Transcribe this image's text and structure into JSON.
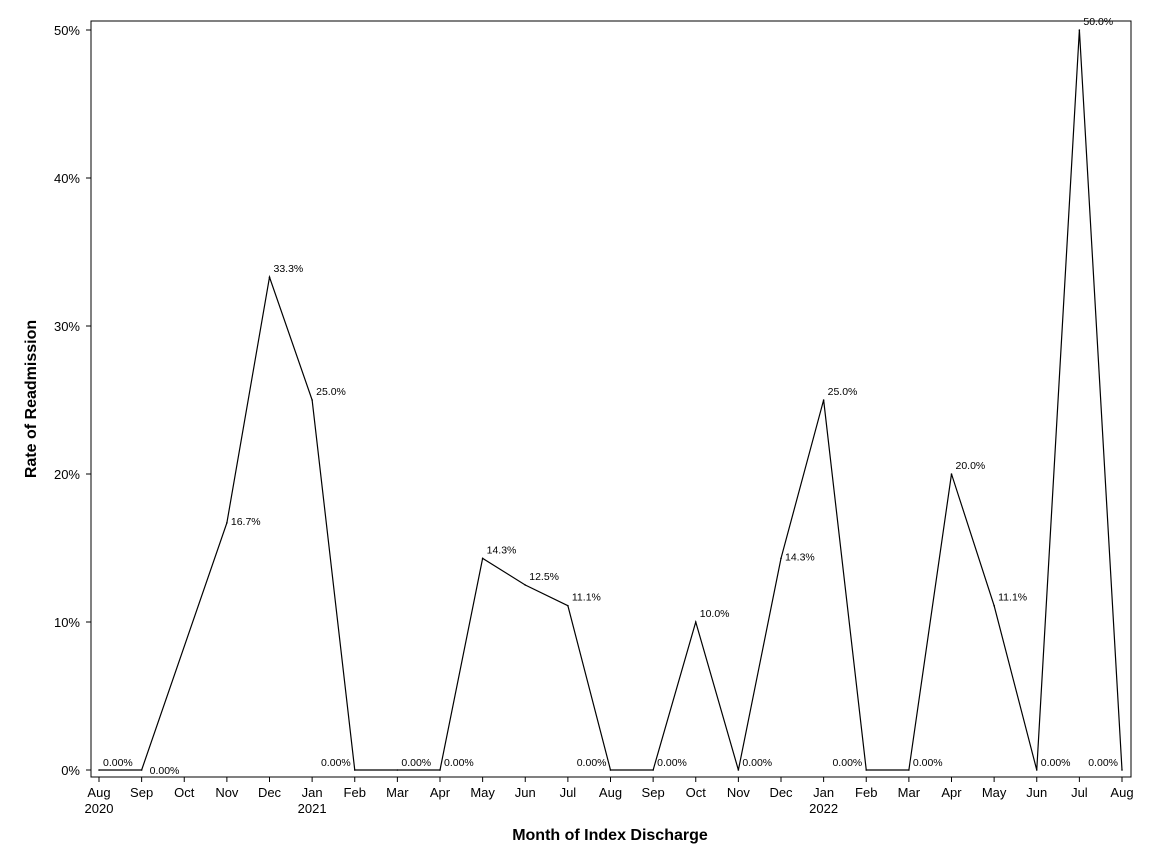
{
  "chart_data": {
    "type": "line",
    "title": "",
    "xlabel": "Month of Index Discharge",
    "ylabel": "Rate of Readmission",
    "ylim": [
      0,
      50
    ],
    "y_ticks": [
      "0%",
      "10%",
      "20%",
      "30%",
      "40%",
      "50%"
    ],
    "y_tick_values": [
      0,
      10,
      20,
      30,
      40,
      50
    ],
    "categories": [
      "Aug",
      "Sep",
      "Oct",
      "Nov",
      "Dec",
      "Jan",
      "Feb",
      "Mar",
      "Apr",
      "May",
      "Jun",
      "Jul",
      "Aug",
      "Sep",
      "Oct",
      "Nov",
      "Dec",
      "Jan",
      "Feb",
      "Mar",
      "Apr",
      "May",
      "Jun",
      "Jul",
      "Aug"
    ],
    "year_labels": [
      "2020",
      "",
      "",
      "",
      "",
      "2021",
      "",
      "",
      "",
      "",
      "",
      "",
      "",
      "",
      "",
      "",
      "",
      "2022",
      "",
      "",
      "",
      "",
      "",
      "",
      ""
    ],
    "x": [
      "2020-08",
      "2020-09",
      "2020-10",
      "2020-11",
      "2020-12",
      "2021-01",
      "2021-02",
      "2021-03",
      "2021-04",
      "2021-05",
      "2021-06",
      "2021-07",
      "2021-08",
      "2021-09",
      "2021-10",
      "2021-11",
      "2021-12",
      "2022-01",
      "2022-02",
      "2022-03",
      "2022-04",
      "2022-05",
      "2022-06",
      "2022-07",
      "2022-08"
    ],
    "series": [
      {
        "values": [
          0,
          0,
          null,
          16.7,
          33.3,
          25.0,
          0,
          0,
          0,
          14.3,
          12.5,
          11.1,
          0,
          0,
          10.0,
          0,
          14.3,
          25.0,
          0,
          0,
          20.0,
          11.1,
          0,
          50.0,
          0
        ],
        "data_labels": [
          "0.00%",
          "0.00%",
          "",
          "16.7%",
          "33.3%",
          "25.0%",
          "0.00%",
          "0.00%",
          "0.00%",
          "14.3%",
          "12.5%",
          "11.1%",
          "0.00%",
          "0.00%",
          "10.0%",
          "0.00%",
          "14.3%",
          "25.0%",
          "0.00%",
          "0.00%",
          "20.0%",
          "11.1%",
          "0.00%",
          "50.0%",
          "0.00%"
        ],
        "color": "#000000"
      }
    ],
    "grid": false,
    "legend": "none"
  }
}
